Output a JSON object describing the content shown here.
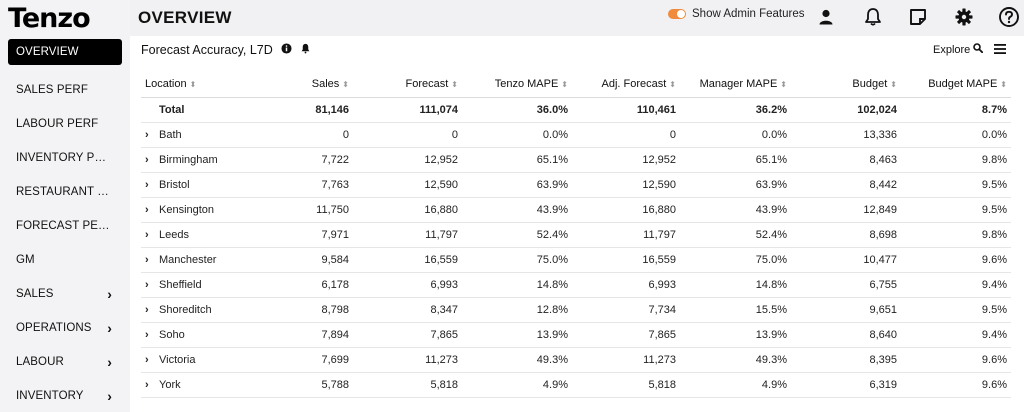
{
  "app": {
    "logo": "Tenzo"
  },
  "sidebar": {
    "items": [
      {
        "label": "OVERVIEW",
        "active": true,
        "expandable": false
      },
      {
        "label": "SALES PERF",
        "expandable": false
      },
      {
        "label": "LABOUR PERF",
        "expandable": false
      },
      {
        "label": "INVENTORY PERF",
        "expandable": false
      },
      {
        "label": "RESTAURANT PER...",
        "expandable": false
      },
      {
        "label": "FORECAST PERF",
        "expandable": false
      },
      {
        "label": "GM",
        "expandable": false
      },
      {
        "label": "SALES",
        "expandable": true
      },
      {
        "label": "OPERATIONS",
        "expandable": true
      },
      {
        "label": "LABOUR",
        "expandable": true
      },
      {
        "label": "INVENTORY",
        "expandable": true
      }
    ]
  },
  "header": {
    "title": "OVERVIEW",
    "admin_toggle_label": "Show Admin Features",
    "icons": [
      "user-icon",
      "bell-icon",
      "note-icon",
      "gear-icon",
      "help-icon"
    ]
  },
  "card": {
    "title": "Forecast Accuracy, L7D",
    "explore_label": "Explore"
  },
  "table": {
    "columns": [
      "Location",
      "Sales",
      "Forecast",
      "Tenzo MAPE",
      "Adj. Forecast",
      "Manager MAPE",
      "Budget",
      "Budget MAPE"
    ],
    "total": [
      "Total",
      "81,146",
      "111,074",
      "36.0%",
      "110,461",
      "36.2%",
      "102,024",
      "8.7%"
    ],
    "rows": [
      [
        "Bath",
        "0",
        "0",
        "0.0%",
        "0",
        "0.0%",
        "13,336",
        "0.0%"
      ],
      [
        "Birmingham",
        "7,722",
        "12,952",
        "65.1%",
        "12,952",
        "65.1%",
        "8,463",
        "9.8%"
      ],
      [
        "Bristol",
        "7,763",
        "12,590",
        "63.9%",
        "12,590",
        "63.9%",
        "8,442",
        "9.5%"
      ],
      [
        "Kensington",
        "11,750",
        "16,880",
        "43.9%",
        "16,880",
        "43.9%",
        "12,849",
        "9.5%"
      ],
      [
        "Leeds",
        "7,971",
        "11,797",
        "52.4%",
        "11,797",
        "52.4%",
        "8,698",
        "9.8%"
      ],
      [
        "Manchester",
        "9,584",
        "16,559",
        "75.0%",
        "16,559",
        "75.0%",
        "10,477",
        "9.6%"
      ],
      [
        "Sheffield",
        "6,178",
        "6,993",
        "14.8%",
        "6,993",
        "14.8%",
        "6,755",
        "9.4%"
      ],
      [
        "Shoreditch",
        "8,798",
        "8,347",
        "12.8%",
        "7,734",
        "15.5%",
        "9,651",
        "9.5%"
      ],
      [
        "Soho",
        "7,894",
        "7,865",
        "13.9%",
        "7,865",
        "13.9%",
        "8,640",
        "9.4%"
      ],
      [
        "Victoria",
        "7,699",
        "11,273",
        "49.3%",
        "11,273",
        "49.3%",
        "8,395",
        "9.6%"
      ],
      [
        "York",
        "5,788",
        "5,818",
        "4.9%",
        "5,818",
        "4.9%",
        "6,319",
        "9.6%"
      ]
    ]
  }
}
